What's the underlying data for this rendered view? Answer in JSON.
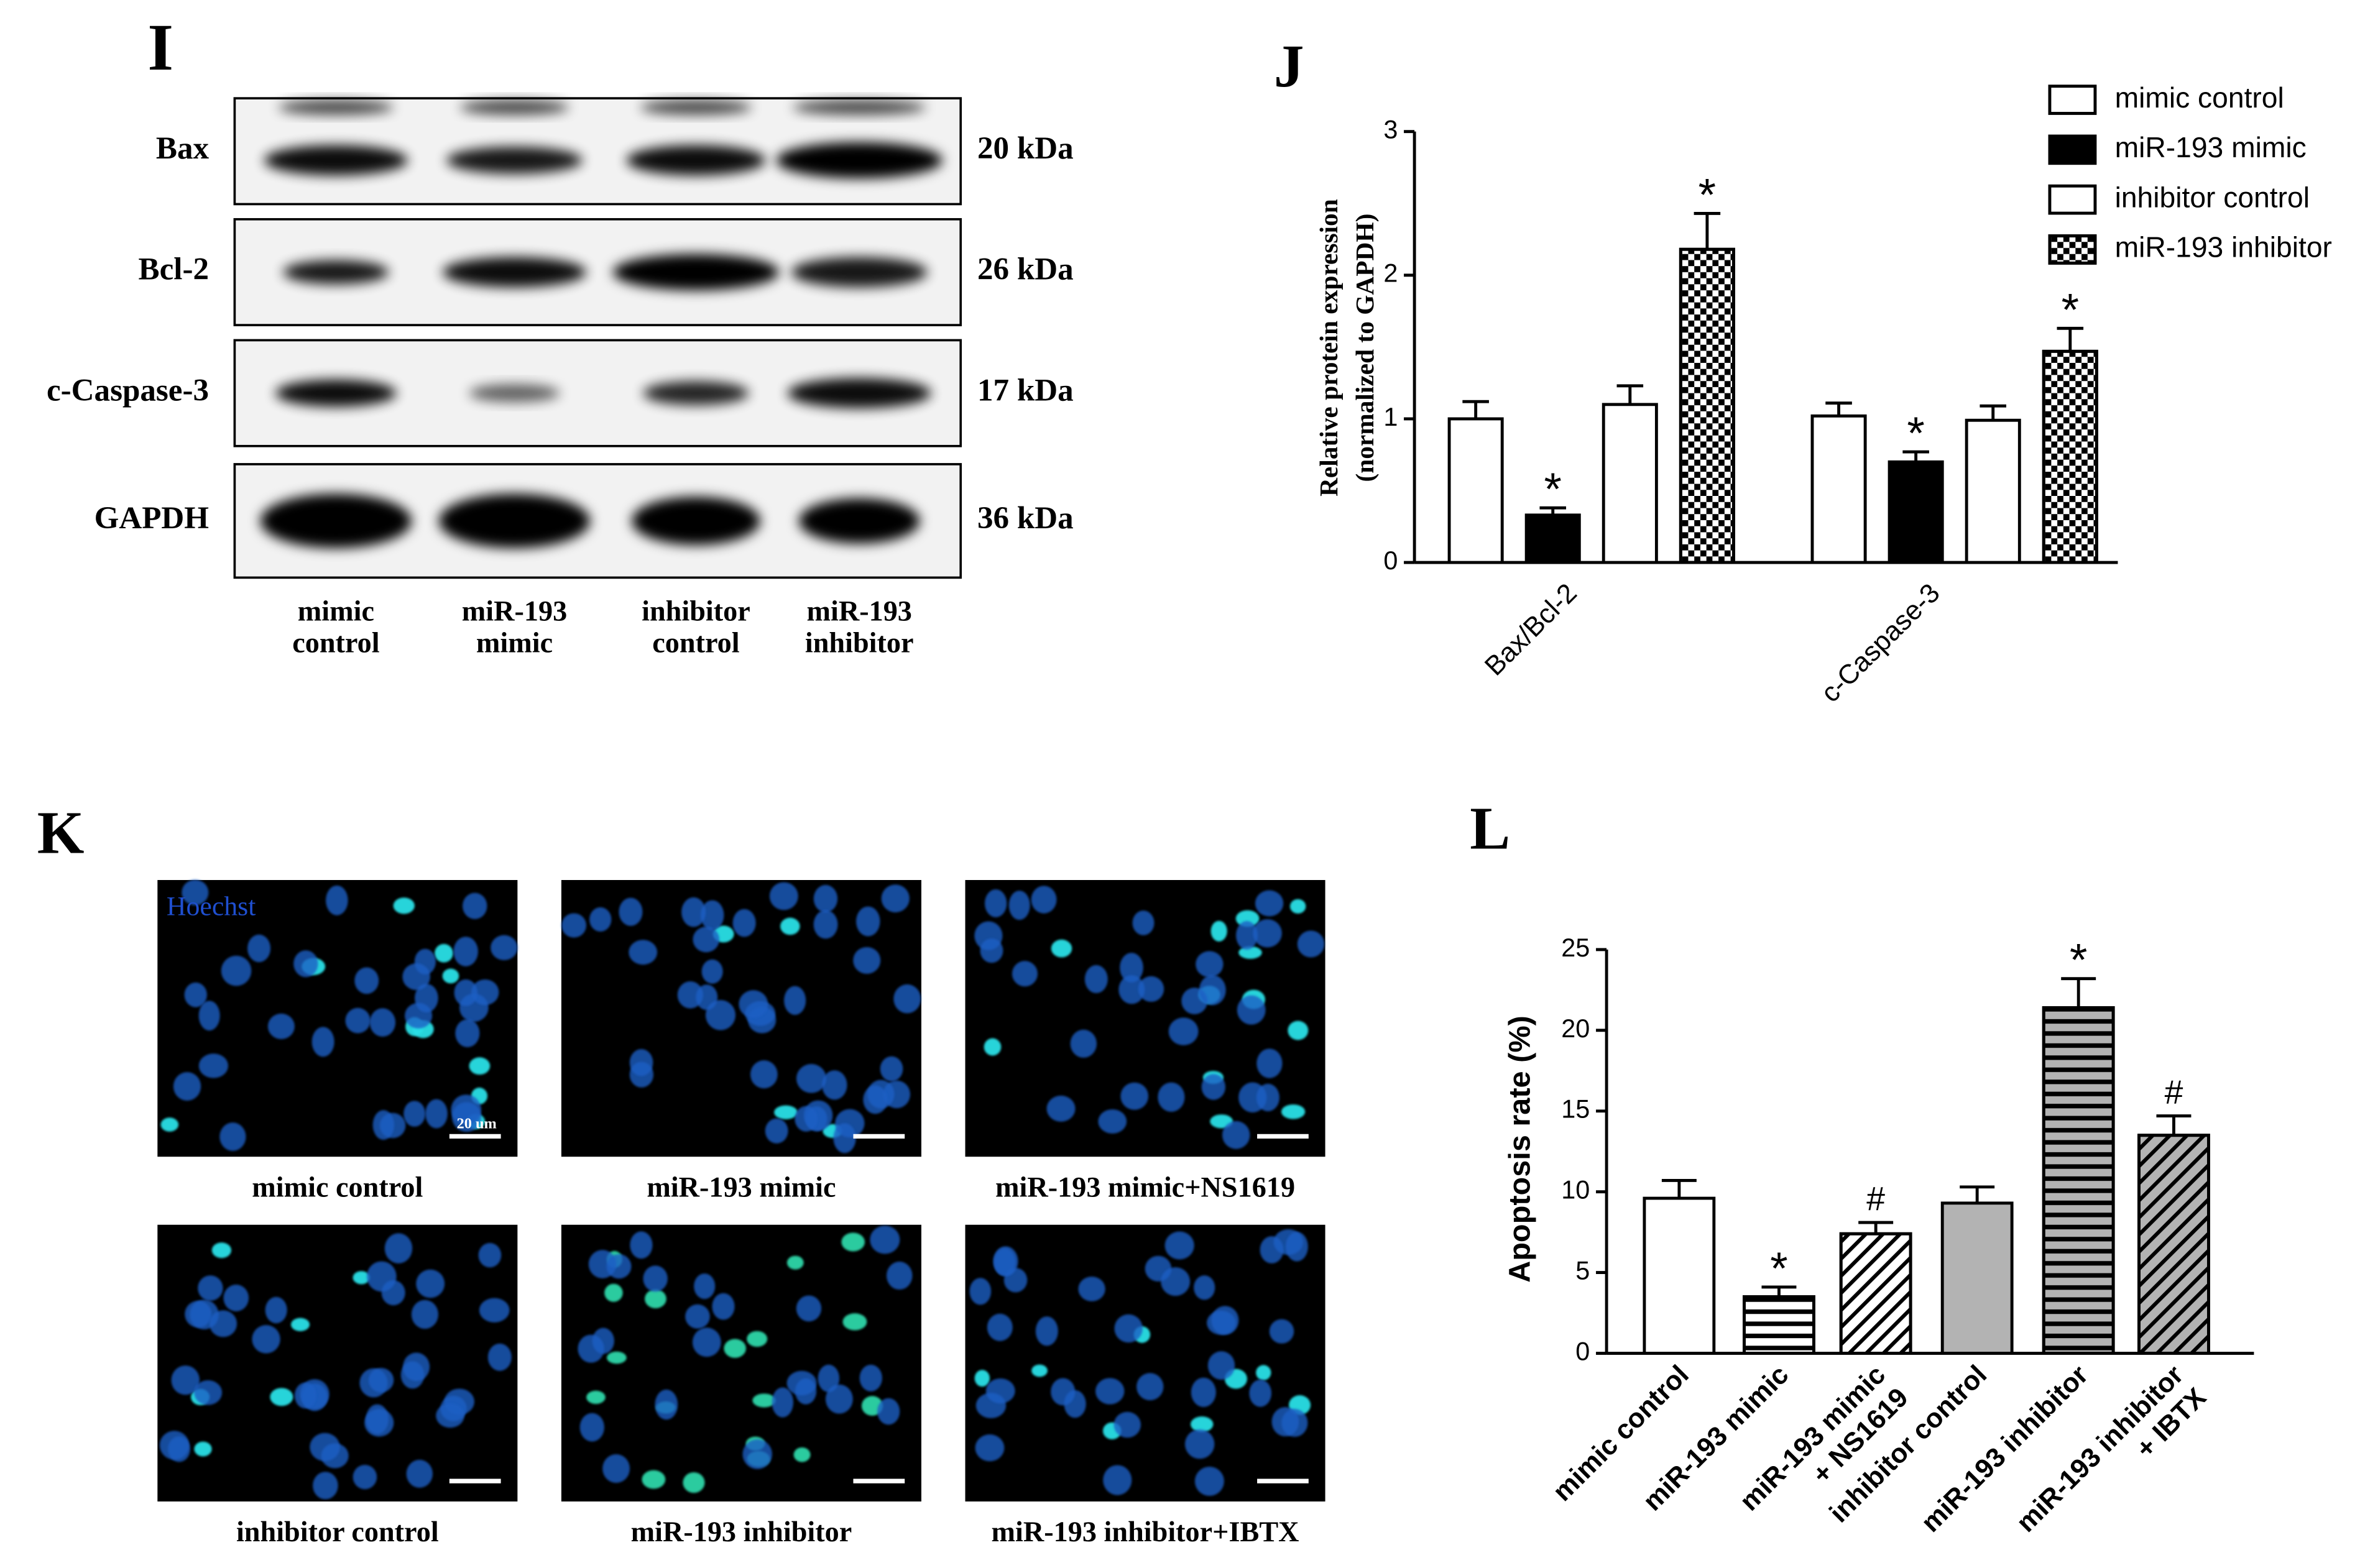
{
  "panel_labels": [
    "I",
    "J",
    "K",
    "L"
  ],
  "western_blot": {
    "rows": [
      {
        "protein": "Bax",
        "size": "20 kDa"
      },
      {
        "protein": "Bcl-2",
        "size": "26 kDa"
      },
      {
        "protein": "c-Caspase-3",
        "size": "17 kDa"
      },
      {
        "protein": "GAPDH",
        "size": "36 kDa"
      }
    ],
    "lanes": [
      [
        "mimic",
        "control"
      ],
      [
        "miR-193",
        "mimic"
      ],
      [
        "inhibitor",
        "control"
      ],
      [
        "miR-193",
        "inhibitor"
      ]
    ]
  },
  "chart_data": [
    {
      "type": "bar",
      "y_label": [
        "Relative protein expression",
        "(normalized to GAPDH)"
      ],
      "categories": [
        "Bax/Bcl-2",
        "c-Caspase-3"
      ],
      "series": [
        {
          "name": "mimic control",
          "color": "#ffffff",
          "pattern": null,
          "values": [
            1.0,
            1.02
          ],
          "errors": [
            0.12,
            0.09
          ],
          "annotations": [
            null,
            null
          ]
        },
        {
          "name": "miR-193 mimic",
          "color": "#000000",
          "pattern": null,
          "values": [
            0.33,
            0.7
          ],
          "errors": [
            0.05,
            0.07
          ],
          "annotations": [
            "*",
            "*"
          ]
        },
        {
          "name": "inhibitor control",
          "color": "#ffffff",
          "pattern": null,
          "values": [
            1.1,
            0.99
          ],
          "errors": [
            0.13,
            0.1
          ],
          "annotations": [
            null,
            null
          ]
        },
        {
          "name": "miR-193 inhibitor",
          "color": "#ffffff",
          "pattern": "checker",
          "values": [
            2.18,
            1.47
          ],
          "errors": [
            0.25,
            0.16
          ],
          "annotations": [
            "*",
            "*"
          ]
        }
      ],
      "ylim": [
        0,
        3
      ],
      "yticks": [
        0,
        1,
        2,
        3
      ]
    },
    {
      "type": "bar",
      "y_label": "Apoptosis rate (%)",
      "categories": [
        [
          "mimic control"
        ],
        [
          "miR-193 mimic"
        ],
        [
          "miR-193 mimic",
          "+ NS1619"
        ],
        [
          "inhibitor control"
        ],
        [
          "miR-193 inhibitor"
        ],
        [
          "miR-193 inhibitor",
          "+ IBTX"
        ]
      ],
      "values": [
        9.6,
        3.5,
        7.4,
        9.3,
        21.4,
        13.5
      ],
      "errors": [
        1.1,
        0.6,
        0.7,
        1.0,
        1.8,
        1.2
      ],
      "annotations": [
        null,
        "*",
        "#",
        null,
        "*",
        "#"
      ],
      "colors": [
        "#ffffff",
        "#ffffff",
        "#ffffff",
        "#b3b3b3",
        "#b3b3b3",
        "#b3b3b3"
      ],
      "patterns": [
        null,
        "hstripe",
        "diag",
        null,
        "hstripe",
        "diag"
      ],
      "ylim": [
        0,
        25
      ],
      "yticks": [
        0,
        5,
        10,
        15,
        20,
        25
      ]
    }
  ],
  "hoechst": {
    "stain_label": "Hoechst",
    "scale_bar": "20 um",
    "images": [
      "mimic control",
      "miR-193 mimic",
      "miR-193 mimic+NS1619",
      "inhibitor control",
      "miR-193 inhibitor",
      "miR-193 inhibitor+IBTX"
    ]
  }
}
